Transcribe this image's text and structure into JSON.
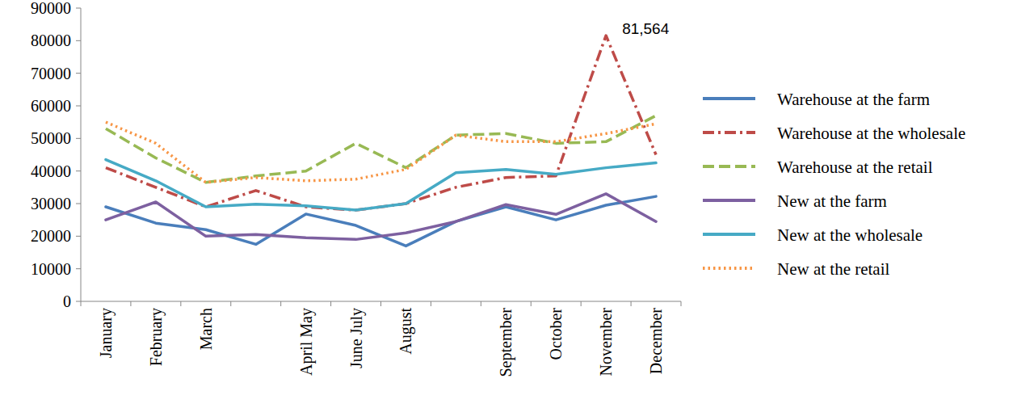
{
  "chart_data": {
    "type": "line",
    "categories": [
      "January",
      "February",
      "March",
      null,
      "April May",
      "June July",
      "August",
      null,
      "September",
      "October",
      "November",
      "December"
    ],
    "ylim": [
      0,
      90000
    ],
    "yticks": [
      0,
      10000,
      20000,
      30000,
      40000,
      50000,
      60000,
      70000,
      80000,
      90000
    ],
    "grid": false,
    "legend": "right",
    "annotations": [
      {
        "text": "81,564",
        "value": 81564,
        "category": "November"
      }
    ],
    "series": [
      {
        "name": "Warehouse at the farm",
        "color": "#4a7ebb",
        "line_style": "solid",
        "values": [
          29000,
          24000,
          22000,
          17500,
          26800,
          23300,
          17000,
          24500,
          29000,
          25000,
          29500,
          32200
        ]
      },
      {
        "name": "Warehouse at the wholesale",
        "color": "#be4b48",
        "line_style": "dashdot",
        "values": [
          41000,
          35000,
          29000,
          34000,
          29000,
          28000,
          30000,
          35000,
          38000,
          38500,
          81564,
          45000
        ]
      },
      {
        "name": "Warehouse at the retail",
        "color": "#98b954",
        "line_style": "dash",
        "values": [
          53000,
          44000,
          36500,
          38500,
          40000,
          48500,
          41000,
          51000,
          51500,
          48500,
          49000,
          57000
        ]
      },
      {
        "name": "New at the farm",
        "color": "#7d60a0",
        "line_style": "solid",
        "values": [
          25000,
          30500,
          20000,
          20500,
          19500,
          19000,
          21000,
          24500,
          29700,
          26700,
          33000,
          24500
        ]
      },
      {
        "name": "New at the wholesale",
        "color": "#46aac5",
        "line_style": "solid",
        "values": [
          43500,
          37000,
          29000,
          29800,
          29300,
          28000,
          30000,
          39500,
          40500,
          39000,
          41000,
          42500
        ]
      },
      {
        "name": "New at the retail",
        "color": "#f79646",
        "line_style": "dot",
        "values": [
          55000,
          48500,
          36500,
          38000,
          37000,
          37500,
          40500,
          51000,
          49000,
          49000,
          51500,
          54500
        ]
      }
    ]
  }
}
